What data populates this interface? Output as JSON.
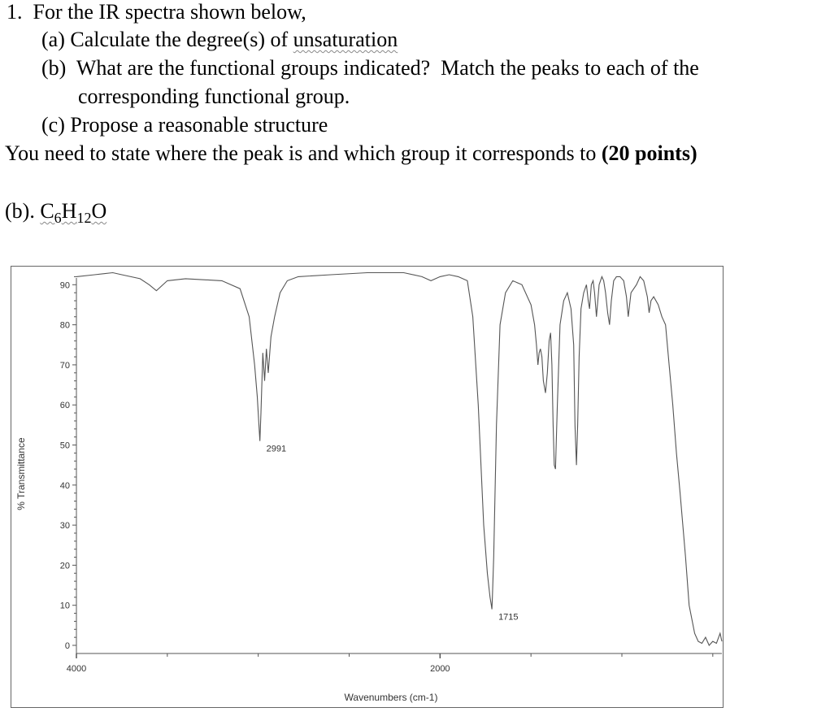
{
  "question": {
    "number": "1.",
    "intro": "For the IR spectra shown below,",
    "part_a_label": "(a)",
    "part_a_text": "Calculate the degree(s) of ",
    "part_a_underlined": "unsaturation",
    "part_b_label": "(b)",
    "part_b_text_line1": "What are the functional groups indicated?  Match the peaks to each of the",
    "part_b_text_line2": "corresponding functional group.",
    "part_c_label": "(c)",
    "part_c_text": "Propose a reasonable structure",
    "instruction": "You need to state where the peak is and which group it corresponds to ",
    "points": "(20 points)"
  },
  "formula": {
    "label": "(b). ",
    "c": "C",
    "c_sub": "6",
    "h": "H",
    "h_sub": "12",
    "o": "O"
  },
  "chart_data": {
    "type": "line",
    "xlabel": "Wavenumbers (cm-1)",
    "ylabel": "% Transmittance",
    "xlim": [
      4000,
      450
    ],
    "ylim": [
      0,
      93
    ],
    "x_ticks": [
      4000,
      2000
    ],
    "y_ticks": [
      0,
      10,
      20,
      30,
      40,
      50,
      60,
      70,
      80,
      90
    ],
    "annotations": [
      {
        "text": "2991",
        "x": 2991,
        "y": 50
      },
      {
        "text": "1715",
        "x": 1715,
        "y": 8
      }
    ],
    "series": [
      {
        "x": [
          4000,
          3900,
          3800,
          3750,
          3650,
          3600,
          3560,
          3500,
          3400,
          3200,
          3100,
          3050,
          3020,
          3005,
          2995,
          2991,
          2985,
          2975,
          2965,
          2955,
          2945,
          2930,
          2910,
          2880,
          2840,
          2780,
          2600,
          2400,
          2200,
          2100,
          2050,
          2000,
          1950,
          1900,
          1850,
          1820,
          1790,
          1760,
          1740,
          1725,
          1718,
          1715,
          1712,
          1705,
          1690,
          1670,
          1640,
          1600,
          1550,
          1500,
          1480,
          1470,
          1462,
          1455,
          1448,
          1440,
          1432,
          1420,
          1410,
          1400,
          1392,
          1385,
          1378,
          1372,
          1365,
          1355,
          1340,
          1320,
          1300,
          1280,
          1265,
          1258,
          1250,
          1243,
          1235,
          1225,
          1210,
          1195,
          1185,
          1178,
          1168,
          1158,
          1150,
          1140,
          1125,
          1110,
          1100,
          1090,
          1078,
          1068,
          1058,
          1045,
          1030,
          1010,
          990,
          975,
          965,
          950,
          920,
          900,
          880,
          860,
          850,
          840,
          825,
          800,
          780,
          760,
          740,
          720,
          700,
          680,
          650,
          630,
          600,
          580,
          560,
          540,
          520,
          500,
          480,
          460,
          450
        ],
        "y": [
          92,
          92.5,
          93,
          92.5,
          91.5,
          90,
          88.5,
          91,
          91.5,
          91,
          89,
          82,
          70,
          62,
          54,
          51,
          58,
          73,
          66,
          74,
          68,
          77,
          82,
          88,
          91,
          92,
          92.5,
          93,
          93,
          92,
          91,
          92,
          92.5,
          92,
          91,
          82,
          60,
          30,
          18,
          12,
          10,
          9,
          12,
          22,
          55,
          80,
          88,
          91,
          90,
          85,
          80,
          75,
          70,
          73,
          74,
          72,
          66,
          63,
          68,
          76,
          78,
          70,
          55,
          45,
          44,
          60,
          80,
          86,
          88,
          84,
          75,
          55,
          45,
          55,
          72,
          84,
          88,
          90,
          86,
          84,
          90,
          91,
          88,
          82,
          90,
          92,
          91,
          88,
          83,
          80,
          86,
          91,
          92,
          92,
          91,
          87,
          82,
          88,
          90,
          92,
          91,
          87,
          83,
          86,
          87,
          85,
          82,
          80,
          70,
          60,
          48,
          38,
          22,
          10,
          3,
          1,
          0.5,
          2,
          0,
          1,
          0.5,
          3,
          1
        ]
      }
    ]
  }
}
